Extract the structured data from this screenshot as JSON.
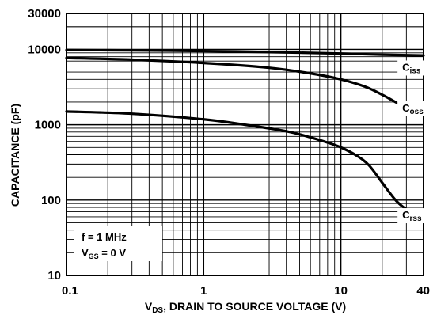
{
  "chart_data": {
    "type": "line",
    "xscale": "log",
    "yscale": "log",
    "xlim": [
      0.1,
      40
    ],
    "ylim": [
      10,
      30000
    ],
    "xlabel": {
      "sym": "V",
      "sub": "DS",
      "rest": ", DRAIN TO SOURCE VOLTAGE (V)"
    },
    "ylabel": "CAPACITANCE (pF)",
    "x_ticks": [
      {
        "value": 0.1,
        "label": "0.1"
      },
      {
        "value": 1,
        "label": "1"
      },
      {
        "value": 10,
        "label": "10"
      },
      {
        "value": 40,
        "label": "40"
      }
    ],
    "y_ticks": [
      {
        "value": 10,
        "label": "10"
      },
      {
        "value": 100,
        "label": "100"
      },
      {
        "value": 1000,
        "label": "1000"
      },
      {
        "value": 10000,
        "label": "10000"
      },
      {
        "value": 30000,
        "label": "30000"
      }
    ],
    "grid": true,
    "series": [
      {
        "name": "Ciss",
        "label_main": "C",
        "label_sub": "iss",
        "label_at": [
          28,
          5200
        ],
        "points": [
          [
            0.1,
            9800
          ],
          [
            0.3,
            9700
          ],
          [
            1,
            9500
          ],
          [
            3,
            9200
          ],
          [
            10,
            8800
          ],
          [
            20,
            8500
          ],
          [
            40,
            8300
          ]
        ]
      },
      {
        "name": "Coss",
        "label_main": "C",
        "label_sub": "oss",
        "label_at": [
          28,
          1500
        ],
        "points": [
          [
            0.1,
            7700
          ],
          [
            0.3,
            7300
          ],
          [
            1,
            6600
          ],
          [
            3,
            5700
          ],
          [
            6,
            4800
          ],
          [
            10,
            4000
          ],
          [
            15,
            3200
          ],
          [
            20,
            2500
          ],
          [
            25,
            2000
          ],
          [
            30,
            1700
          ],
          [
            40,
            1350
          ]
        ]
      },
      {
        "name": "Crss",
        "label_main": "C",
        "label_sub": "rss",
        "label_at": [
          28,
          57
        ],
        "points": [
          [
            0.1,
            1500
          ],
          [
            0.3,
            1400
          ],
          [
            1,
            1180
          ],
          [
            2,
            1000
          ],
          [
            4,
            820
          ],
          [
            6,
            680
          ],
          [
            8,
            580
          ],
          [
            10,
            500
          ],
          [
            13,
            390
          ],
          [
            16,
            290
          ],
          [
            20,
            170
          ],
          [
            25,
            100
          ],
          [
            30,
            75
          ],
          [
            35,
            63
          ],
          [
            40,
            57
          ]
        ]
      }
    ],
    "annotation": {
      "line1": "f = 1 MHz",
      "line2_sym": "V",
      "line2_sub": "GS",
      "line2_rest": " = 0 V"
    }
  }
}
